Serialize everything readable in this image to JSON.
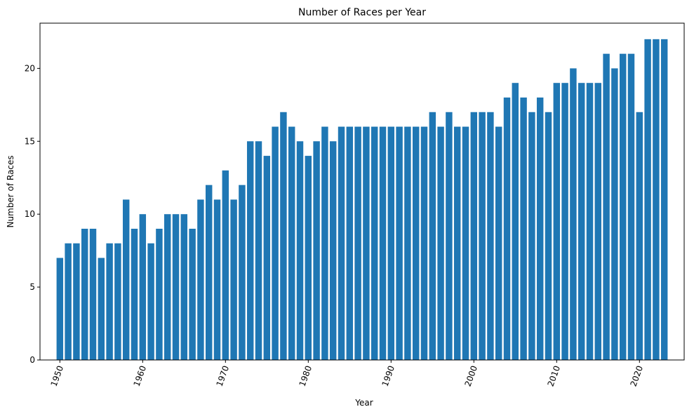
{
  "chart_data": {
    "type": "bar",
    "title": "Number of Races per Year",
    "xlabel": "Year",
    "ylabel": "Number of Races",
    "x": [
      1950,
      1951,
      1952,
      1953,
      1954,
      1955,
      1956,
      1957,
      1958,
      1959,
      1960,
      1961,
      1962,
      1963,
      1964,
      1965,
      1966,
      1967,
      1968,
      1969,
      1970,
      1971,
      1972,
      1973,
      1974,
      1975,
      1976,
      1977,
      1978,
      1979,
      1980,
      1981,
      1982,
      1983,
      1984,
      1985,
      1986,
      1987,
      1988,
      1989,
      1990,
      1991,
      1992,
      1993,
      1994,
      1995,
      1996,
      1997,
      1998,
      1999,
      2000,
      2001,
      2002,
      2003,
      2004,
      2005,
      2006,
      2007,
      2008,
      2009,
      2010,
      2011,
      2012,
      2013,
      2014,
      2015,
      2016,
      2017,
      2018,
      2019,
      2020,
      2021,
      2022,
      2023
    ],
    "values": [
      7,
      8,
      8,
      9,
      9,
      7,
      8,
      8,
      11,
      9,
      10,
      8,
      9,
      10,
      10,
      10,
      9,
      11,
      12,
      11,
      13,
      11,
      12,
      15,
      15,
      14,
      16,
      17,
      16,
      15,
      14,
      15,
      16,
      15,
      16,
      16,
      16,
      16,
      16,
      16,
      16,
      16,
      16,
      16,
      16,
      17,
      16,
      17,
      16,
      16,
      17,
      17,
      17,
      16,
      18,
      19,
      18,
      17,
      18,
      17,
      19,
      19,
      20,
      19,
      19,
      19,
      21,
      20,
      21,
      21,
      17,
      22,
      22,
      22
    ],
    "xticks": [
      "1950",
      "1960",
      "1970",
      "1980",
      "1990",
      "2000",
      "2010",
      "2020"
    ],
    "yticks": [
      "0",
      "5",
      "10",
      "15",
      "20"
    ],
    "xlim": [
      1947.6,
      2025.4
    ],
    "ylim": [
      0,
      23.1
    ],
    "bar_color": "#1f77b4",
    "grid": false,
    "legend": "none",
    "xtick_rotation": "70deg"
  }
}
